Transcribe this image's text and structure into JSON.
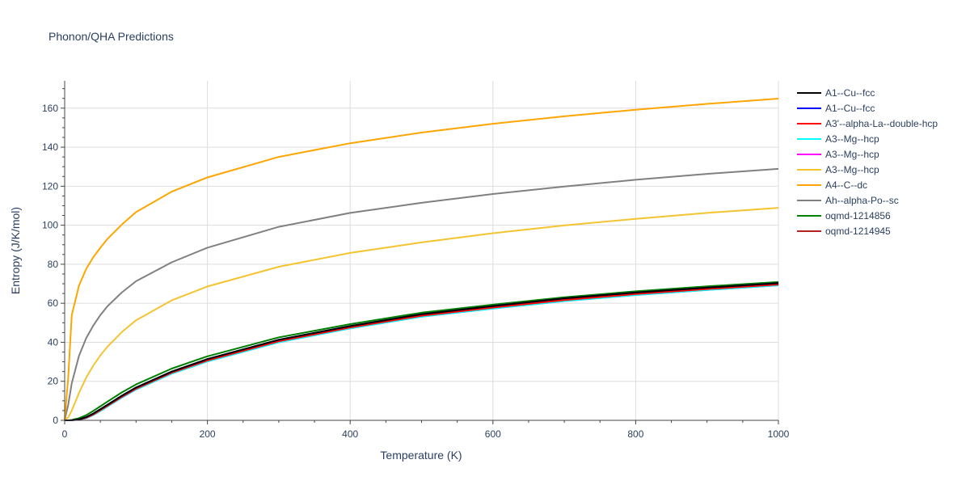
{
  "chart_data": {
    "type": "line",
    "title": "Phonon/QHA Predictions",
    "xlabel": "Temperature (K)",
    "ylabel": "Entropy (J/K/mol)",
    "xlim": [
      0,
      1000
    ],
    "ylim": [
      0,
      174
    ],
    "xticks": [
      0,
      200,
      400,
      600,
      800,
      1000
    ],
    "yticks": [
      0,
      20,
      40,
      60,
      80,
      100,
      120,
      140,
      160
    ],
    "grid": true,
    "legend_position": "right",
    "x": [
      0,
      5,
      10,
      20,
      30,
      40,
      50,
      60,
      80,
      100,
      150,
      200,
      300,
      400,
      500,
      600,
      700,
      800,
      900,
      1000
    ],
    "series": [
      {
        "name": "A1--Cu--fcc",
        "color": "#000000",
        "values": [
          0,
          0,
          0.05,
          0.5,
          1.6,
          3.5,
          5.7,
          8.0,
          12.6,
          16.8,
          25.0,
          31.4,
          41.3,
          48.3,
          54.4,
          58.6,
          62.5,
          65.5,
          68.0,
          70.3
        ]
      },
      {
        "name": "A1--Cu--fcc",
        "color": "#0000ff",
        "values": [
          0,
          0,
          0.05,
          0.5,
          1.6,
          3.5,
          5.7,
          8.0,
          12.6,
          16.8,
          25.0,
          31.4,
          41.3,
          48.3,
          54.4,
          58.6,
          62.5,
          65.5,
          68.0,
          70.3
        ]
      },
      {
        "name": "A3'--alpha-La--double-hcp",
        "color": "#ff0000",
        "values": [
          0,
          0,
          0.05,
          0.4,
          1.3,
          3.0,
          5.2,
          7.5,
          12.0,
          16.2,
          24.4,
          30.7,
          40.5,
          47.6,
          53.6,
          57.8,
          61.6,
          64.7,
          67.3,
          69.6
        ]
      },
      {
        "name": "A3--Mg--hcp",
        "color": "#00ffff",
        "values": [
          0,
          0,
          0.03,
          0.3,
          1.1,
          2.7,
          4.8,
          7.1,
          11.6,
          15.8,
          23.9,
          30.2,
          40.0,
          47.1,
          53.1,
          57.3,
          61.1,
          64.2,
          66.8,
          69.2
        ]
      },
      {
        "name": "A3--Mg--hcp",
        "color": "#ff00ff",
        "values": [
          0,
          0,
          0.03,
          0.3,
          1.1,
          2.7,
          4.8,
          7.1,
          11.6,
          15.8,
          23.9,
          30.2,
          40.0,
          47.1,
          53.1,
          57.3,
          61.1,
          64.2,
          66.8,
          69.2
        ]
      },
      {
        "name": "A3--Mg--hcp",
        "color": "#f4c430",
        "values": [
          0,
          1.5,
          5.0,
          14.0,
          21.8,
          28.0,
          33.3,
          37.8,
          45.2,
          51.3,
          61.5,
          68.6,
          78.7,
          85.8,
          91.2,
          95.9,
          99.9,
          103.3,
          106.3,
          108.9
        ]
      },
      {
        "name": "A4--C--dc",
        "color": "#ffa500",
        "values": [
          0,
          22,
          54,
          69,
          77.5,
          83.5,
          88.5,
          93,
          100.3,
          106.7,
          117.2,
          124.5,
          135.0,
          142.0,
          147.5,
          152.0,
          155.8,
          159.2,
          162.2,
          164.9
        ]
      },
      {
        "name": "Ah--alpha-Po--sc",
        "color": "#808080",
        "values": [
          0,
          8,
          19,
          33,
          42,
          48.5,
          54,
          58.5,
          65.5,
          71.3,
          81.0,
          88.5,
          99.2,
          106.3,
          111.5,
          116.0,
          119.8,
          123.3,
          126.3,
          128.9
        ]
      },
      {
        "name": "oqmd-1214856",
        "color": "#008000",
        "values": [
          0,
          0,
          0.2,
          1.1,
          2.6,
          4.8,
          7.2,
          9.6,
          14.3,
          18.4,
          26.5,
          32.8,
          42.5,
          49.3,
          55.2,
          59.3,
          63.1,
          66.1,
          68.7,
          70.9
        ]
      },
      {
        "name": "oqmd-1214945",
        "color": "#b22222",
        "values": [
          0,
          0,
          0.05,
          0.4,
          1.4,
          3.2,
          5.4,
          7.7,
          12.3,
          16.5,
          24.7,
          31.0,
          40.9,
          47.9,
          53.9,
          58.1,
          62.0,
          65.1,
          67.6,
          69.9
        ]
      }
    ]
  }
}
